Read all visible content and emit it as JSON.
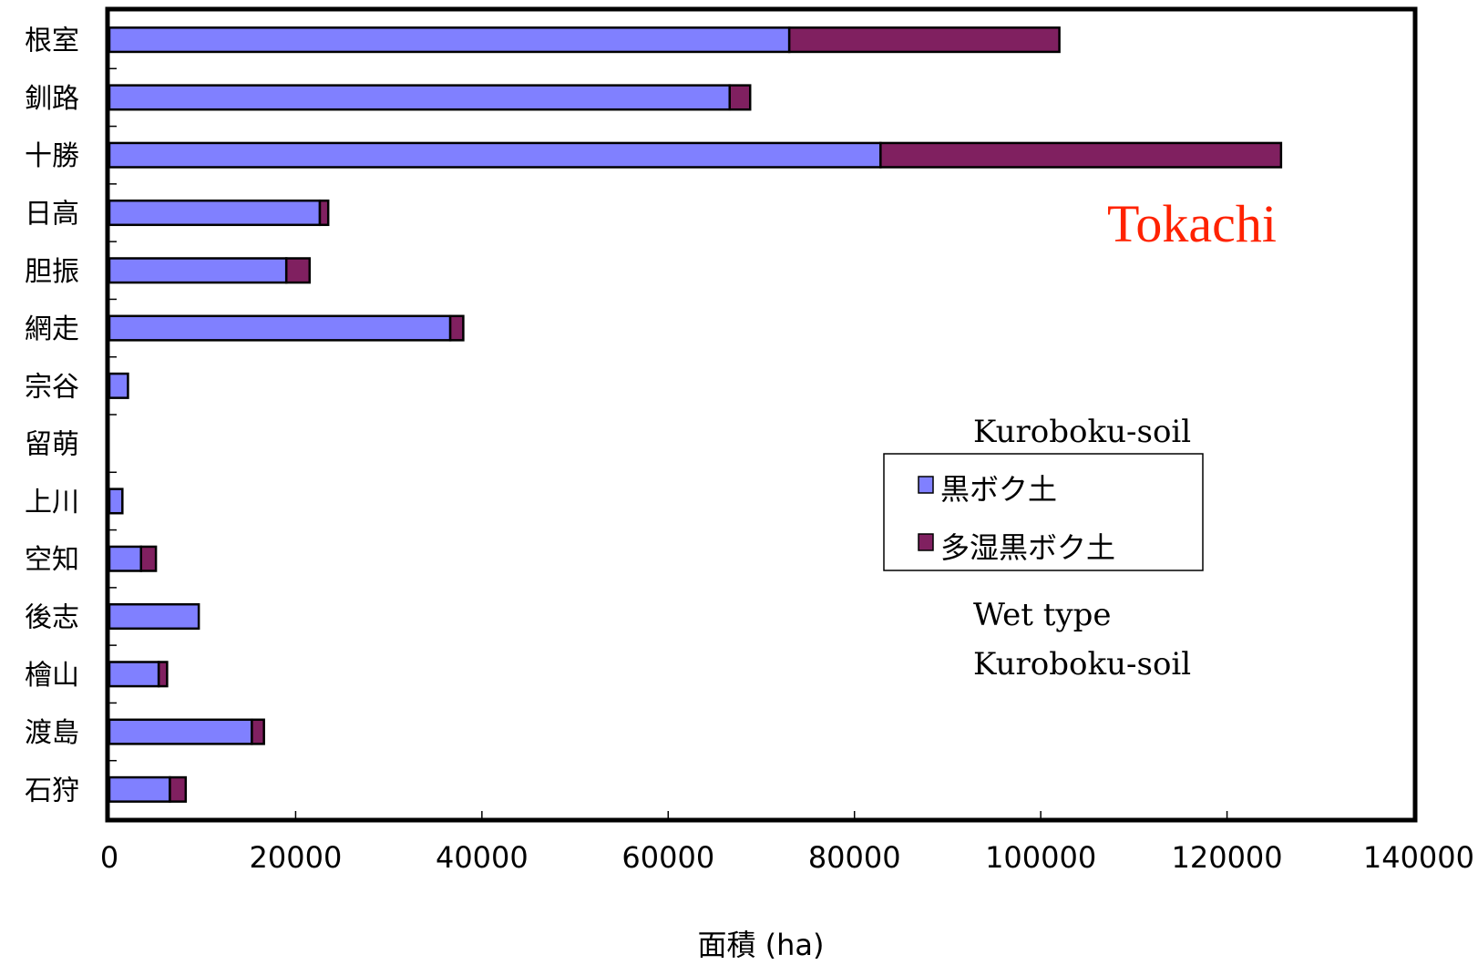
{
  "chart_data": {
    "type": "bar",
    "orientation": "horizontal",
    "stacked": true,
    "categories": [
      "根室",
      "釧路",
      "十勝",
      "日高",
      "胆振",
      "網走",
      "宗谷",
      "留萌",
      "上川",
      "空知",
      "後志",
      "檜山",
      "渡島",
      "石狩"
    ],
    "series": [
      {
        "name": "黒ボク土",
        "color": "#8080ff",
        "values": [
          73000,
          66600,
          82800,
          22600,
          19000,
          36600,
          2000,
          0,
          1400,
          3400,
          9600,
          5300,
          15300,
          6500
        ]
      },
      {
        "name": "多湿黒ボク土",
        "color": "#802060",
        "values": [
          29000,
          2200,
          43000,
          900,
          2500,
          1400,
          0,
          0,
          0,
          1600,
          0,
          900,
          1300,
          1700
        ]
      }
    ],
    "xlabel": "面積 (ha)",
    "xlim": [
      0,
      140000
    ],
    "xticks": [
      "0",
      "20000",
      "40000",
      "60000",
      "80000",
      "100000",
      "120000",
      "140000"
    ],
    "grid": false,
    "legend_position": "right",
    "annotations": {
      "highlight": "Tokachi",
      "legend_caption_1": "Kuroboku-soil",
      "legend_caption_2_line1": "Wet type",
      "legend_caption_2_line2": "Kuroboku-soil"
    },
    "colors": {
      "frame": "#000000",
      "highlight": "#ff2200"
    }
  }
}
